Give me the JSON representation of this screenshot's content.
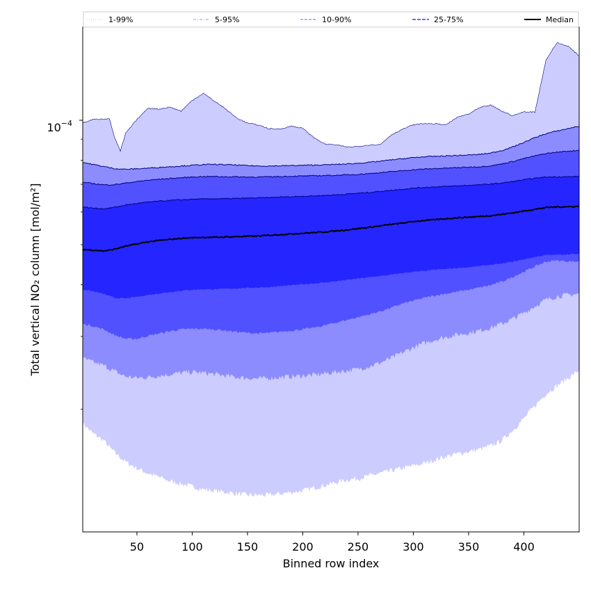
{
  "chart_data": {
    "type": "area",
    "xlabel": "Binned row index",
    "ylabel": "Total vertical NO₂ column [mol/m²]",
    "yscale": "log",
    "xlim": [
      1,
      450
    ],
    "ylim": [
      1.01e-05,
      0.000168
    ],
    "xticks": [
      50,
      100,
      150,
      200,
      250,
      300,
      350,
      400
    ],
    "ytick_label": {
      "base": "10",
      "exponent": "−4",
      "value": 0.0001
    },
    "x_knots": [
      1,
      10,
      20,
      25,
      30,
      35,
      40,
      50,
      60,
      70,
      80,
      90,
      100,
      110,
      120,
      130,
      140,
      150,
      160,
      170,
      180,
      190,
      200,
      210,
      220,
      230,
      240,
      250,
      260,
      270,
      280,
      290,
      300,
      310,
      320,
      330,
      340,
      350,
      360,
      370,
      380,
      390,
      400,
      410,
      420,
      430,
      440,
      450
    ],
    "series": [
      {
        "name": "p1",
        "values": [
          1.85e-05,
          1.75e-05,
          1.68e-05,
          1.62e-05,
          1.57e-05,
          1.53e-05,
          1.49e-05,
          1.44e-05,
          1.4e-05,
          1.37e-05,
          1.34e-05,
          1.32e-05,
          1.3e-05,
          1.28e-05,
          1.27e-05,
          1.26e-05,
          1.25e-05,
          1.24e-05,
          1.24e-05,
          1.24e-05,
          1.25e-05,
          1.26e-05,
          1.27e-05,
          1.29e-05,
          1.31e-05,
          1.33e-05,
          1.35e-05,
          1.36e-05,
          1.38e-05,
          1.4e-05,
          1.42e-05,
          1.44e-05,
          1.46e-05,
          1.48e-05,
          1.51e-05,
          1.54e-05,
          1.56e-05,
          1.58e-05,
          1.6e-05,
          1.63e-05,
          1.68e-05,
          1.78e-05,
          1.9e-05,
          2.04e-05,
          2.18e-05,
          2.28e-05,
          2.38e-05,
          2.48e-05
        ]
      },
      {
        "name": "p5",
        "values": [
          2.65e-05,
          2.6e-05,
          2.55e-05,
          2.51e-05,
          2.47e-05,
          2.43e-05,
          2.4e-05,
          2.38e-05,
          2.39e-05,
          2.41e-05,
          2.43e-05,
          2.45e-05,
          2.46e-05,
          2.45e-05,
          2.43e-05,
          2.41e-05,
          2.39e-05,
          2.38e-05,
          2.37e-05,
          2.38e-05,
          2.39e-05,
          2.4e-05,
          2.41e-05,
          2.42e-05,
          2.44e-05,
          2.46e-05,
          2.48e-05,
          2.5e-05,
          2.54e-05,
          2.59e-05,
          2.66e-05,
          2.74e-05,
          2.82e-05,
          2.89e-05,
          2.95e-05,
          2.99e-05,
          3.03e-05,
          3.06e-05,
          3.1e-05,
          3.15e-05,
          3.22e-05,
          3.31e-05,
          3.42e-05,
          3.55e-05,
          3.68e-05,
          3.75e-05,
          3.78e-05,
          3.8e-05
        ]
      },
      {
        "name": "p10",
        "values": [
          3.22e-05,
          3.18e-05,
          3.12e-05,
          3.07e-05,
          3.02e-05,
          2.99e-05,
          2.96e-05,
          2.96e-05,
          3.01e-05,
          3.05e-05,
          3.09e-05,
          3.12e-05,
          3.13e-05,
          3.13e-05,
          3.12e-05,
          3.1e-05,
          3.08e-05,
          3.06e-05,
          3.05e-05,
          3.06e-05,
          3.08e-05,
          3.1e-05,
          3.12e-05,
          3.15e-05,
          3.19e-05,
          3.24e-05,
          3.29e-05,
          3.34e-05,
          3.39e-05,
          3.45e-05,
          3.52e-05,
          3.6e-05,
          3.66e-05,
          3.72e-05,
          3.77e-05,
          3.81e-05,
          3.85e-05,
          3.89e-05,
          3.94e-05,
          3.99e-05,
          4.07e-05,
          4.18e-05,
          4.3e-05,
          4.43e-05,
          4.55e-05,
          4.58e-05,
          4.56e-05,
          4.55e-05
        ]
      },
      {
        "name": "p25",
        "values": [
          3.9e-05,
          3.86e-05,
          3.8e-05,
          3.76e-05,
          3.72e-05,
          3.71e-05,
          3.71e-05,
          3.74e-05,
          3.78e-05,
          3.81e-05,
          3.84e-05,
          3.87e-05,
          3.89e-05,
          3.9e-05,
          3.9e-05,
          3.91e-05,
          3.92e-05,
          3.93e-05,
          3.94e-05,
          3.95e-05,
          3.97e-05,
          3.99e-05,
          4.01e-05,
          4.03e-05,
          4.05e-05,
          4.08e-05,
          4.11e-05,
          4.14e-05,
          4.17e-05,
          4.2e-05,
          4.23e-05,
          4.27e-05,
          4.3e-05,
          4.32e-05,
          4.35e-05,
          4.37e-05,
          4.39e-05,
          4.41e-05,
          4.44e-05,
          4.47e-05,
          4.5e-05,
          4.55e-05,
          4.61e-05,
          4.67e-05,
          4.72e-05,
          4.73e-05,
          4.74e-05,
          4.75e-05
        ]
      },
      {
        "name": "median",
        "values": [
          4.87e-05,
          4.85e-05,
          4.83e-05,
          4.85e-05,
          4.88e-05,
          4.92e-05,
          4.96e-05,
          5.02e-05,
          5.08e-05,
          5.12e-05,
          5.15e-05,
          5.18e-05,
          5.2e-05,
          5.21e-05,
          5.21e-05,
          5.22e-05,
          5.23e-05,
          5.24e-05,
          5.25e-05,
          5.27e-05,
          5.29e-05,
          5.31e-05,
          5.33e-05,
          5.35e-05,
          5.37e-05,
          5.4e-05,
          5.43e-05,
          5.47e-05,
          5.51e-05,
          5.55e-05,
          5.6e-05,
          5.64e-05,
          5.69e-05,
          5.72e-05,
          5.75e-05,
          5.78e-05,
          5.81e-05,
          5.83e-05,
          5.85e-05,
          5.88e-05,
          5.92e-05,
          5.97e-05,
          6.03e-05,
          6.09e-05,
          6.15e-05,
          6.17e-05,
          6.18e-05,
          6.19e-05
        ]
      },
      {
        "name": "p75",
        "values": [
          6.17e-05,
          6.13e-05,
          6.11e-05,
          6.13e-05,
          6.16e-05,
          6.2e-05,
          6.24e-05,
          6.29e-05,
          6.34e-05,
          6.37e-05,
          6.4e-05,
          6.42e-05,
          6.44e-05,
          6.45e-05,
          6.46e-05,
          6.46e-05,
          6.47e-05,
          6.48e-05,
          6.49e-05,
          6.5e-05,
          6.52e-05,
          6.53e-05,
          6.55e-05,
          6.56e-05,
          6.58e-05,
          6.6e-05,
          6.63e-05,
          6.66e-05,
          6.69e-05,
          6.73e-05,
          6.77e-05,
          6.81e-05,
          6.85e-05,
          6.88e-05,
          6.9e-05,
          6.92e-05,
          6.94e-05,
          6.96e-05,
          6.98e-05,
          7.01e-05,
          7.05e-05,
          7.11e-05,
          7.18e-05,
          7.24e-05,
          7.29e-05,
          7.3e-05,
          7.3e-05,
          7.31e-05
        ]
      },
      {
        "name": "p90",
        "values": [
          7.08e-05,
          7.03e-05,
          6.98e-05,
          6.98e-05,
          6.99e-05,
          7.02e-05,
          7.05e-05,
          7.11e-05,
          7.16e-05,
          7.2e-05,
          7.23e-05,
          7.26e-05,
          7.29e-05,
          7.31e-05,
          7.31e-05,
          7.3e-05,
          7.3e-05,
          7.29e-05,
          7.29e-05,
          7.3e-05,
          7.31e-05,
          7.32e-05,
          7.33e-05,
          7.34e-05,
          7.35e-05,
          7.36e-05,
          7.38e-05,
          7.4e-05,
          7.43e-05,
          7.47e-05,
          7.51e-05,
          7.55e-05,
          7.59e-05,
          7.62e-05,
          7.64e-05,
          7.66e-05,
          7.68e-05,
          7.7e-05,
          7.72e-05,
          7.76e-05,
          7.84e-05,
          7.95e-05,
          8.08e-05,
          8.2e-05,
          8.31e-05,
          8.37e-05,
          8.42e-05,
          8.46e-05
        ]
      },
      {
        "name": "p95",
        "values": [
          7.91e-05,
          7.82e-05,
          7.73e-05,
          7.68e-05,
          7.64e-05,
          7.62e-05,
          7.61e-05,
          7.63e-05,
          7.66e-05,
          7.69e-05,
          7.72e-05,
          7.75e-05,
          7.78e-05,
          7.81e-05,
          7.82e-05,
          7.81e-05,
          7.79e-05,
          7.77e-05,
          7.75e-05,
          7.75e-05,
          7.76e-05,
          7.77e-05,
          7.78e-05,
          7.79e-05,
          7.8e-05,
          7.82e-05,
          7.84e-05,
          7.87e-05,
          7.91e-05,
          7.96e-05,
          8.02e-05,
          8.07e-05,
          8.12e-05,
          8.16e-05,
          8.18e-05,
          8.2e-05,
          8.22e-05,
          8.24e-05,
          8.27e-05,
          8.33e-05,
          8.45e-05,
          8.62e-05,
          8.84e-05,
          9.08e-05,
          9.28e-05,
          9.42e-05,
          9.55e-05,
          9.68e-05
        ]
      },
      {
        "name": "p99",
        "values": [
          9.85e-05,
          0.0001004,
          0.0001008,
          0.000101,
          9.06e-05,
          8.42e-05,
          9.32e-05,
          0.0001004,
          0.000107,
          0.0001064,
          0.0001076,
          0.0001052,
          0.0001117,
          0.0001162,
          0.0001113,
          0.0001066,
          0.0001014,
          9.84e-05,
          9.74e-05,
          9.53e-05,
          9.53e-05,
          9.68e-05,
          9.56e-05,
          9.08e-05,
          8.76e-05,
          8.72e-05,
          8.61e-05,
          8.64e-05,
          8.72e-05,
          8.73e-05,
          9.22e-05,
          9.51e-05,
          9.75e-05,
          9.82e-05,
          9.8e-05,
          9.76e-05,
          0.0001018,
          0.0001035,
          0.0001072,
          0.0001088,
          0.0001052,
          0.0001026,
          0.0001048,
          0.0001047,
          0.00014,
          0.000154,
          0.000151,
          0.000143
        ]
      }
    ],
    "bands": [
      {
        "label": "1-99%",
        "lower": "p1",
        "upper": "p99",
        "fill": "#ccccff"
      },
      {
        "label": "5-95%",
        "lower": "p5",
        "upper": "p95",
        "fill": "#8c8cff"
      },
      {
        "label": "10-90%",
        "lower": "p10",
        "upper": "p90",
        "fill": "#5151ff"
      },
      {
        "label": "25-75%",
        "lower": "p25",
        "upper": "p75",
        "fill": "#2525ff"
      }
    ],
    "outline_color": "#000080",
    "median_color": "#000000",
    "legend": [
      {
        "label": "1-99%",
        "style": "dotted",
        "color": "#c8c8ff"
      },
      {
        "label": "5-95%",
        "style": "dashdot",
        "color": "#9090ff"
      },
      {
        "label": "10-90%",
        "style": "dashed",
        "color": "#6464ff"
      },
      {
        "label": "25-75%",
        "style": "dashed-bold",
        "color": "#3535ff"
      },
      {
        "label": "Median",
        "style": "solid",
        "color": "#000000"
      }
    ]
  }
}
